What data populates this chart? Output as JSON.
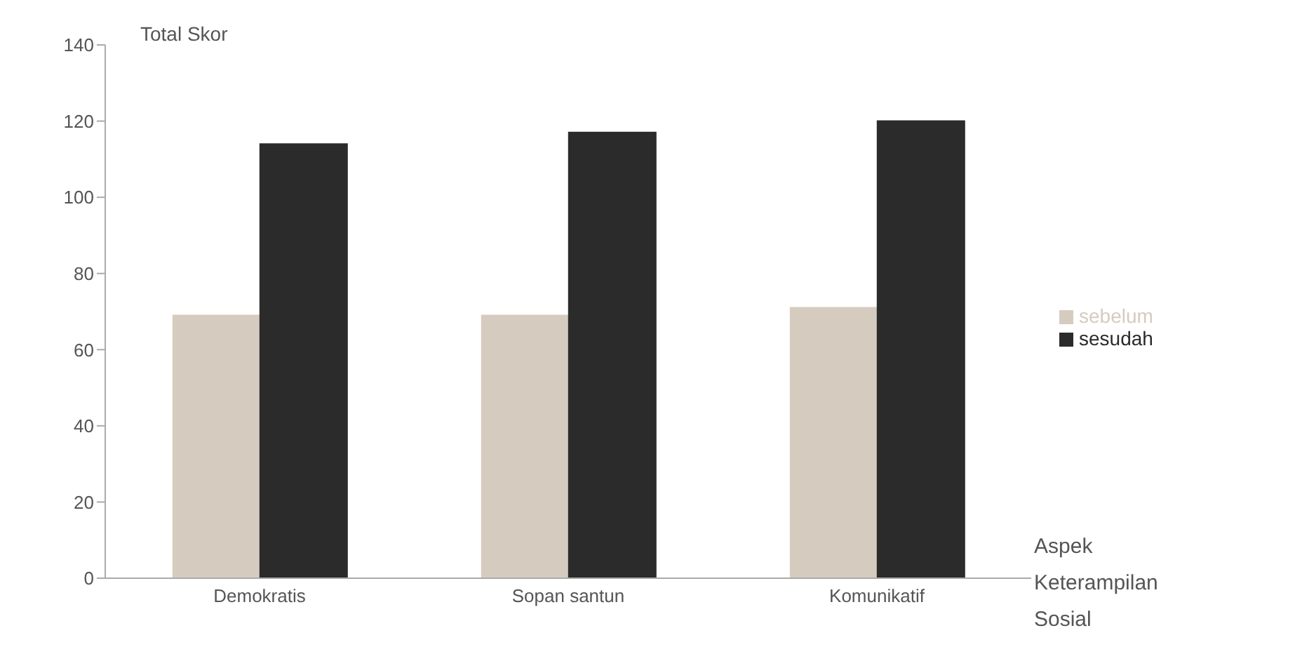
{
  "chart_data": {
    "type": "bar",
    "ylabel": "Total Skor",
    "xlabel": "Aspek Keterampilan Sosial",
    "categories": [
      "Demokratis",
      "Sopan santun",
      "Komunikatif"
    ],
    "series": [
      {
        "name": "sebelum",
        "color": "#d6cbbf",
        "values": [
          69,
          69,
          71
        ]
      },
      {
        "name": "sesudah",
        "color": "#2b2b2b",
        "values": [
          114,
          117,
          120
        ]
      }
    ],
    "ylim": [
      0,
      140
    ],
    "yticks": [
      0,
      20,
      40,
      60,
      80,
      100,
      120,
      140
    ],
    "grid": false,
    "legend": "right"
  }
}
